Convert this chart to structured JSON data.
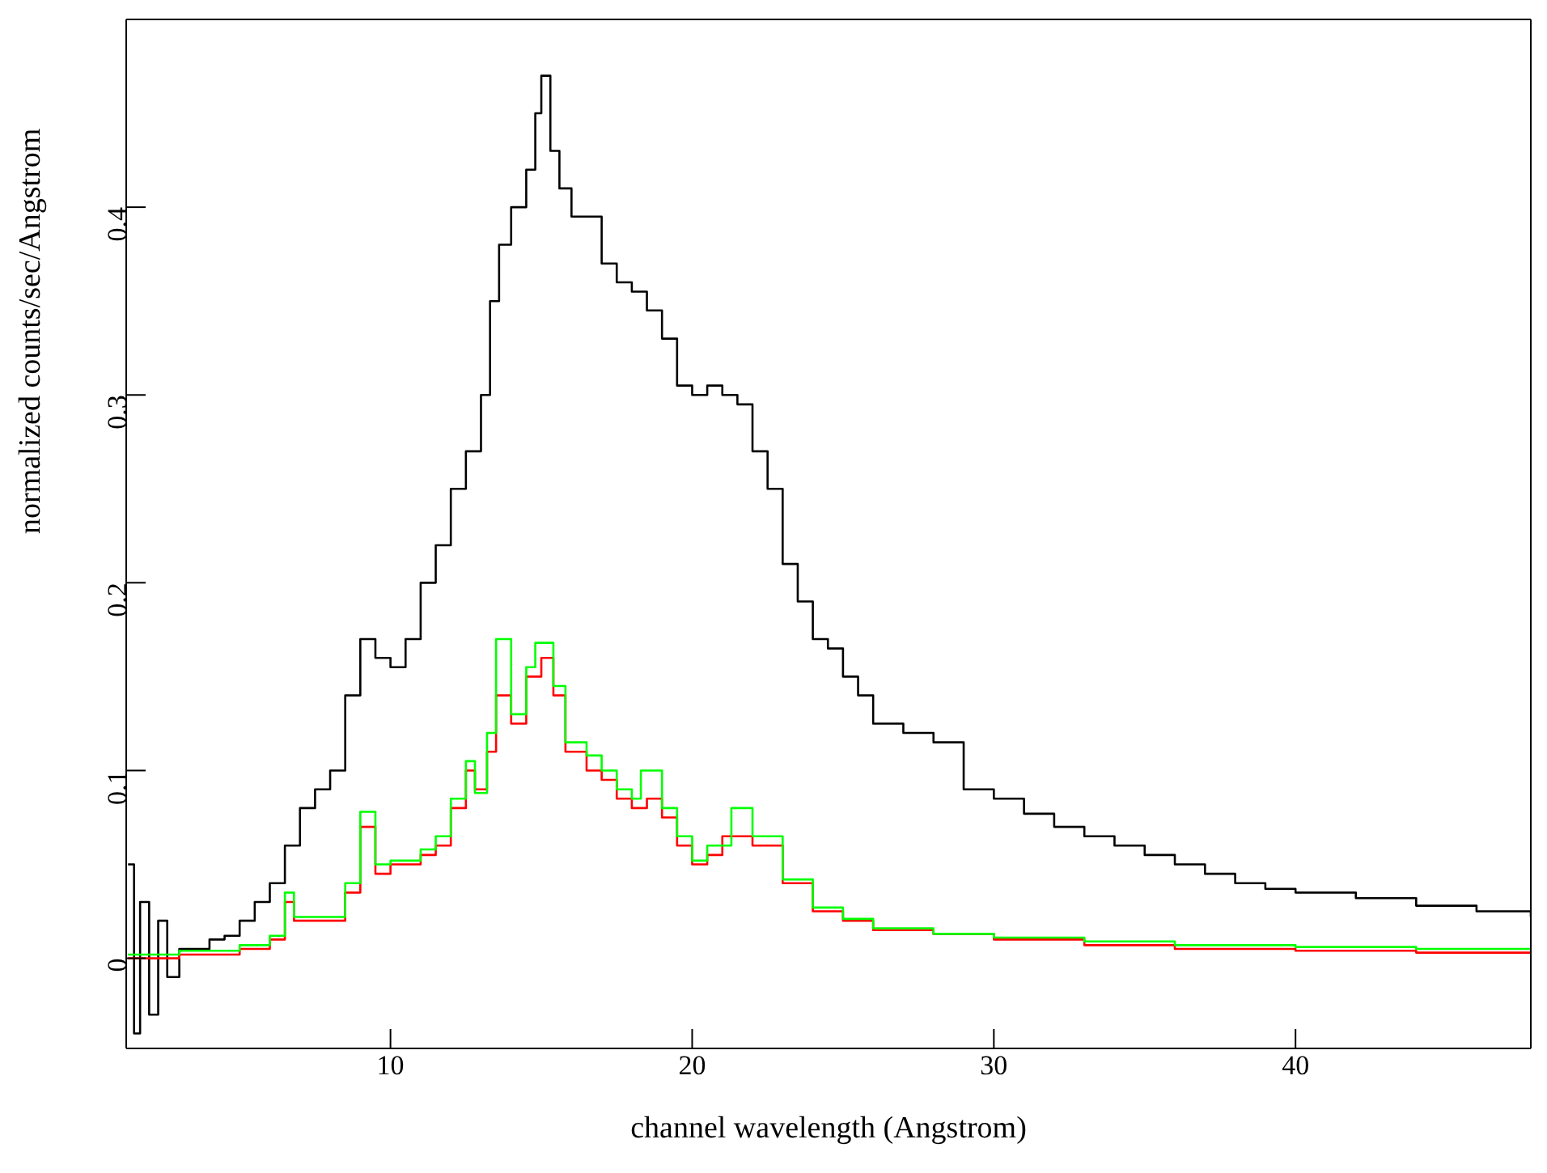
{
  "chart_data": {
    "type": "step",
    "xlabel": "channel wavelength (Angstrom)",
    "ylabel": "normalized counts/sec/Angstrom",
    "xlim": [
      1.24,
      47.8
    ],
    "ylim": [
      -0.048,
      0.5
    ],
    "xticks": [
      10,
      20,
      30,
      40
    ],
    "yticks": [
      0,
      0.1,
      0.2,
      0.3,
      0.4
    ],
    "marker": "none",
    "line_style": "solid",
    "series": [
      {
        "color": "#000000",
        "x": [
          1.3,
          1.5,
          1.7,
          2.0,
          2.3,
          2.6,
          3,
          3.5,
          4,
          4.5,
          5,
          5.5,
          6,
          6.5,
          7,
          7.5,
          8,
          8.5,
          9,
          9.5,
          10,
          10.5,
          11,
          11.5,
          12,
          12.5,
          13,
          13.3,
          13.6,
          14,
          14.5,
          14.8,
          15.0,
          15.3,
          15.6,
          16,
          16.5,
          17,
          17.5,
          18,
          18.5,
          19,
          19.5,
          20,
          20.5,
          21,
          21.5,
          22,
          22.5,
          23,
          23.5,
          24,
          24.5,
          25,
          25.5,
          26,
          27,
          28,
          29,
          30,
          31,
          32,
          33,
          34,
          35,
          36,
          37,
          38,
          39,
          40,
          42,
          44,
          46,
          47.8
        ],
        "values": [
          0.05,
          -0.04,
          0.03,
          -0.03,
          0.02,
          -0.01,
          0.005,
          0.005,
          0.01,
          0.012,
          0.02,
          0.03,
          0.04,
          0.06,
          0.08,
          0.09,
          0.1,
          0.14,
          0.17,
          0.16,
          0.155,
          0.17,
          0.2,
          0.22,
          0.25,
          0.27,
          0.3,
          0.35,
          0.38,
          0.4,
          0.42,
          0.45,
          0.47,
          0.43,
          0.41,
          0.395,
          0.395,
          0.37,
          0.36,
          0.355,
          0.345,
          0.33,
          0.305,
          0.3,
          0.305,
          0.3,
          0.295,
          0.27,
          0.25,
          0.21,
          0.19,
          0.17,
          0.165,
          0.15,
          0.14,
          0.125,
          0.12,
          0.115,
          0.09,
          0.085,
          0.077,
          0.07,
          0.065,
          0.06,
          0.055,
          0.05,
          0.045,
          0.04,
          0.037,
          0.035,
          0.032,
          0.028,
          0.025,
          0.022
        ]
      },
      {
        "color": "#ff0000",
        "x": [
          1.3,
          3,
          5,
          6,
          6.5,
          6.8,
          7.5,
          8.5,
          9,
          9.5,
          10,
          11,
          11.5,
          12,
          12.5,
          12.8,
          13.2,
          13.5,
          14,
          14.5,
          15,
          15.4,
          15.8,
          16.5,
          17,
          17.5,
          18,
          18.5,
          19,
          19.5,
          20,
          20.5,
          21,
          22,
          23,
          24,
          25,
          26,
          28,
          30,
          33,
          36,
          40,
          44,
          47.8
        ],
        "values": [
          0,
          0.002,
          0.005,
          0.01,
          0.03,
          0.02,
          0.02,
          0.035,
          0.07,
          0.045,
          0.05,
          0.055,
          0.06,
          0.08,
          0.1,
          0.09,
          0.11,
          0.14,
          0.125,
          0.15,
          0.16,
          0.14,
          0.11,
          0.1,
          0.095,
          0.085,
          0.08,
          0.085,
          0.075,
          0.06,
          0.05,
          0.055,
          0.065,
          0.06,
          0.04,
          0.025,
          0.02,
          0.015,
          0.013,
          0.01,
          0.007,
          0.005,
          0.004,
          0.003,
          0.003
        ]
      },
      {
        "color": "#00ff00",
        "x": [
          1.3,
          3,
          5,
          6,
          6.5,
          6.8,
          7.5,
          8.5,
          9,
          9.5,
          10,
          11,
          11.5,
          12,
          12.5,
          12.8,
          13.2,
          13.5,
          14,
          14.5,
          14.8,
          15.4,
          15.8,
          16.5,
          17,
          17.5,
          18,
          18.3,
          19,
          19.5,
          20,
          20.5,
          21.3,
          22,
          23,
          24,
          25,
          26,
          28,
          30,
          33,
          36,
          40,
          44,
          47.8
        ],
        "values": [
          0.002,
          0.004,
          0.007,
          0.012,
          0.035,
          0.022,
          0.022,
          0.04,
          0.078,
          0.05,
          0.052,
          0.058,
          0.065,
          0.085,
          0.105,
          0.088,
          0.12,
          0.17,
          0.13,
          0.155,
          0.168,
          0.145,
          0.115,
          0.108,
          0.1,
          0.09,
          0.085,
          0.1,
          0.08,
          0.065,
          0.052,
          0.06,
          0.08,
          0.065,
          0.042,
          0.027,
          0.021,
          0.016,
          0.013,
          0.011,
          0.009,
          0.007,
          0.006,
          0.005,
          0.005
        ]
      }
    ]
  }
}
